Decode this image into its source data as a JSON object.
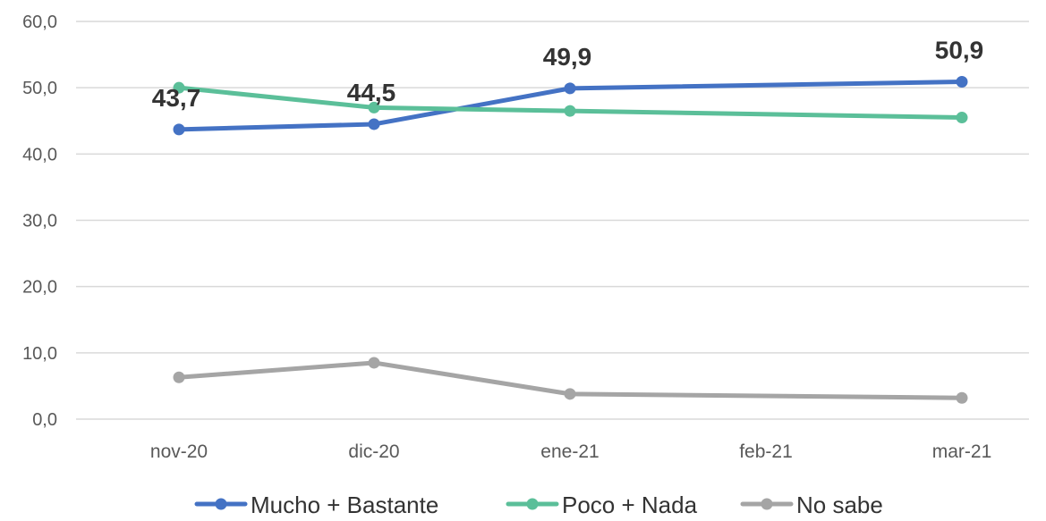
{
  "chart_data": {
    "type": "line",
    "categories": [
      "nov-20",
      "dic-20",
      "ene-21",
      "feb-21",
      "mar-21"
    ],
    "ylim": [
      0,
      60
    ],
    "yticks": [
      "0,0",
      "10,0",
      "20,0",
      "30,0",
      "40,0",
      "50,0",
      "60,0"
    ],
    "grid": true,
    "legend_position": "bottom",
    "series": [
      {
        "name": "Mucho + Bastante",
        "color": "#4472C4",
        "points": [
          {
            "x": "nov-20",
            "y": 43.7
          },
          {
            "x": "dic-20",
            "y": 44.5
          },
          {
            "x": "ene-21",
            "y": 49.9
          },
          {
            "x": "mar-21",
            "y": 50.9
          }
        ],
        "data_labels": [
          {
            "x": "nov-20",
            "text": "43,7"
          },
          {
            "x": "dic-20",
            "text": "44,5"
          },
          {
            "x": "ene-21",
            "text": "49,9"
          },
          {
            "x": "mar-21",
            "text": "50,9"
          }
        ]
      },
      {
        "name": "Poco + Nada",
        "color": "#5BBF99",
        "points": [
          {
            "x": "nov-20",
            "y": 50.0
          },
          {
            "x": "dic-20",
            "y": 47.0
          },
          {
            "x": "ene-21",
            "y": 46.5
          },
          {
            "x": "mar-21",
            "y": 45.5
          }
        ],
        "data_labels": []
      },
      {
        "name": "No sabe",
        "color": "#A5A5A5",
        "points": [
          {
            "x": "nov-20",
            "y": 6.3
          },
          {
            "x": "dic-20",
            "y": 8.5
          },
          {
            "x": "ene-21",
            "y": 3.8
          },
          {
            "x": "mar-21",
            "y": 3.2
          }
        ],
        "data_labels": []
      }
    ]
  }
}
